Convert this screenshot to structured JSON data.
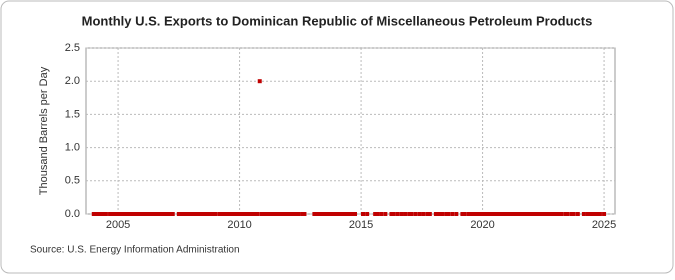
{
  "chart_data": {
    "type": "scatter",
    "title": "Monthly U.S. Exports to Dominican Republic of Miscellaneous Petroleum Products",
    "y_label": "Thousand Barrels per Day",
    "source": "Source: U.S. Energy Information Administration",
    "color": "#c00000",
    "grid": true,
    "xlim": [
      2003.68,
      2025.45
    ],
    "xticks": [
      2005,
      2010,
      2015,
      2020,
      2025
    ],
    "ylim": [
      0,
      2.5
    ],
    "yticks": [
      {
        "value": 0,
        "label": "0.0"
      },
      0.5,
      {
        "value": 1,
        "label": "1.0"
      },
      1.5,
      {
        "value": 2,
        "label": "2.0"
      },
      2.5
    ],
    "x": [
      2004.0,
      2004.08,
      2004.17,
      2004.25,
      2004.33,
      2004.42,
      2004.5,
      2004.67,
      2004.75,
      2004.83,
      2004.92,
      2005.0,
      2005.08,
      2005.17,
      2005.25,
      2005.33,
      2005.42,
      2005.5,
      2005.58,
      2005.67,
      2005.75,
      2005.83,
      2005.92,
      2006.0,
      2006.08,
      2006.17,
      2006.33,
      2006.42,
      2006.5,
      2006.58,
      2006.67,
      2006.75,
      2006.83,
      2006.92,
      2007.0,
      2007.08,
      2007.17,
      2007.25,
      2007.5,
      2007.58,
      2007.67,
      2007.75,
      2007.83,
      2007.92,
      2008.0,
      2008.08,
      2008.17,
      2008.33,
      2008.42,
      2008.5,
      2008.58,
      2008.67,
      2008.75,
      2008.83,
      2008.92,
      2009.0,
      2009.17,
      2009.25,
      2009.33,
      2009.42,
      2009.5,
      2009.58,
      2009.67,
      2009.75,
      2009.83,
      2009.92,
      2010.0,
      2010.08,
      2010.17,
      2010.25,
      2010.33,
      2010.42,
      2010.5,
      2010.58,
      2010.67,
      2010.75,
      2010.83,
      2010.92,
      2011.0,
      2011.08,
      2011.17,
      2011.25,
      2011.33,
      2011.42,
      2011.5,
      2011.58,
      2011.67,
      2011.75,
      2011.83,
      2011.92,
      2012.0,
      2012.08,
      2012.17,
      2012.25,
      2012.33,
      2012.42,
      2012.58,
      2012.67,
      2013.08,
      2013.17,
      2013.25,
      2013.33,
      2013.42,
      2013.5,
      2013.58,
      2013.67,
      2013.75,
      2013.83,
      2013.92,
      2014.0,
      2014.08,
      2014.17,
      2014.25,
      2014.33,
      2014.42,
      2014.5,
      2014.58,
      2014.67,
      2014.75,
      2015.08,
      2015.25,
      2015.58,
      2015.67,
      2015.83,
      2016.0,
      2016.25,
      2016.33,
      2016.5,
      2016.67,
      2016.83,
      2017.0,
      2017.08,
      2017.25,
      2017.42,
      2017.58,
      2017.75,
      2017.83,
      2018.08,
      2018.17,
      2018.33,
      2018.5,
      2018.58,
      2018.75,
      2018.92,
      2019.17,
      2019.25,
      2019.42,
      2019.5,
      2019.58,
      2019.67,
      2019.75,
      2019.83,
      2019.92,
      2020.0,
      2020.08,
      2020.17,
      2020.25,
      2020.33,
      2020.42,
      2020.5,
      2020.58,
      2020.67,
      2020.75,
      2020.83,
      2020.92,
      2021.0,
      2021.08,
      2021.17,
      2021.25,
      2021.33,
      2021.42,
      2021.5,
      2021.58,
      2021.67,
      2021.75,
      2021.83,
      2021.92,
      2022.0,
      2022.08,
      2022.17,
      2022.25,
      2022.33,
      2022.42,
      2022.5,
      2022.58,
      2022.67,
      2022.75,
      2022.83,
      2022.92,
      2023.0,
      2023.08,
      2023.17,
      2023.25,
      2023.42,
      2023.5,
      2023.67,
      2023.75,
      2023.92,
      2024.17,
      2024.33,
      2024.42,
      2024.5,
      2024.58,
      2024.67,
      2024.83,
      2025.0
    ],
    "values": [
      0,
      0,
      0,
      0,
      0,
      0,
      0,
      0,
      0,
      0,
      0,
      0,
      0,
      0,
      0,
      0,
      0,
      0,
      0,
      0,
      0,
      0,
      0,
      0,
      0,
      0,
      0,
      0,
      0,
      0,
      0,
      0,
      0,
      0,
      0,
      0,
      0,
      0,
      0,
      0,
      0,
      0,
      0,
      0,
      0,
      0,
      0,
      0,
      0,
      0,
      0,
      0,
      0,
      0,
      0,
      0,
      0,
      0,
      0,
      0,
      0,
      0,
      0,
      0,
      0,
      0,
      0,
      0,
      0,
      0,
      0,
      0,
      0,
      0,
      0,
      0,
      2,
      0,
      0,
      0,
      0,
      0,
      0,
      0,
      0,
      0,
      0,
      0,
      0,
      0,
      0,
      0,
      0,
      0,
      0,
      0,
      0,
      0,
      0,
      0,
      0,
      0,
      0,
      0,
      0,
      0,
      0,
      0,
      0,
      0,
      0,
      0,
      0,
      0,
      0,
      0,
      0,
      0,
      0,
      0,
      0,
      0,
      0,
      0,
      0,
      0,
      0,
      0,
      0,
      0,
      0,
      0,
      0,
      0,
      0,
      0,
      0,
      0,
      0,
      0,
      0,
      0,
      0,
      0,
      0,
      0,
      0,
      0,
      0,
      0,
      0,
      0,
      0,
      0,
      0,
      0,
      0,
      0,
      0,
      0,
      0,
      0,
      0,
      0,
      0,
      0,
      0,
      0,
      0,
      0,
      0,
      0,
      0,
      0,
      0,
      0,
      0,
      0,
      0,
      0,
      0,
      0,
      0,
      0,
      0,
      0,
      0,
      0,
      0,
      0,
      0,
      0,
      0,
      0,
      0,
      0,
      0,
      0,
      0,
      0,
      0,
      0,
      0,
      0,
      0,
      0
    ]
  }
}
